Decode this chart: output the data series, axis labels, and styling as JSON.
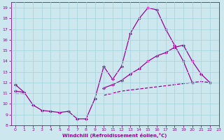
{
  "line1_x": [
    0,
    1,
    2,
    3,
    4,
    5,
    6,
    7,
    8,
    9,
    10,
    11,
    12,
    13,
    14,
    15,
    16,
    17,
    18,
    19,
    20,
    21,
    22
  ],
  "line1_y": [
    11.8,
    11.1,
    9.9,
    9.4,
    9.3,
    9.2,
    9.3,
    8.6,
    8.6,
    10.5,
    13.5,
    12.3,
    13.5,
    16.6,
    18.0,
    19.0,
    18.8,
    17.0,
    15.5,
    14.0,
    12.0,
    null,
    null
  ],
  "line2_x": [
    0,
    1,
    2,
    3,
    4,
    5,
    6,
    7,
    8,
    9,
    10,
    11,
    12,
    13,
    14,
    15,
    16,
    17,
    18,
    19,
    20,
    21,
    22
  ],
  "line2_y": [
    11.2,
    11.1,
    null,
    null,
    null,
    null,
    null,
    null,
    null,
    null,
    11.5,
    11.8,
    12.2,
    12.8,
    13.3,
    14.0,
    14.5,
    14.8,
    15.3,
    15.5,
    14.0,
    12.8,
    12.0
  ],
  "line3_x": [
    0,
    1,
    2,
    3,
    4,
    5,
    6,
    7,
    8,
    9,
    10,
    11,
    12,
    13,
    14,
    15,
    16,
    17,
    18,
    19,
    20,
    21,
    22
  ],
  "line3_y": [
    11.0,
    11.0,
    null,
    null,
    null,
    null,
    null,
    null,
    null,
    null,
    10.8,
    11.0,
    11.2,
    11.3,
    11.4,
    11.5,
    11.6,
    11.7,
    11.8,
    11.9,
    12.0,
    12.1,
    12.0
  ],
  "color": "#990099",
  "bg_color": "#cce8ee",
  "grid_color": "#aad4dd",
  "xlabel": "Windchill (Refroidissement éolien,°C)",
  "ylim": [
    8,
    19.5
  ],
  "xlim": [
    -0.5,
    23
  ],
  "yticks": [
    8,
    9,
    10,
    11,
    12,
    13,
    14,
    15,
    16,
    17,
    18,
    19
  ],
  "xticks": [
    0,
    1,
    2,
    3,
    4,
    5,
    6,
    7,
    8,
    9,
    10,
    11,
    12,
    13,
    14,
    15,
    16,
    17,
    18,
    19,
    20,
    21,
    22,
    23
  ]
}
